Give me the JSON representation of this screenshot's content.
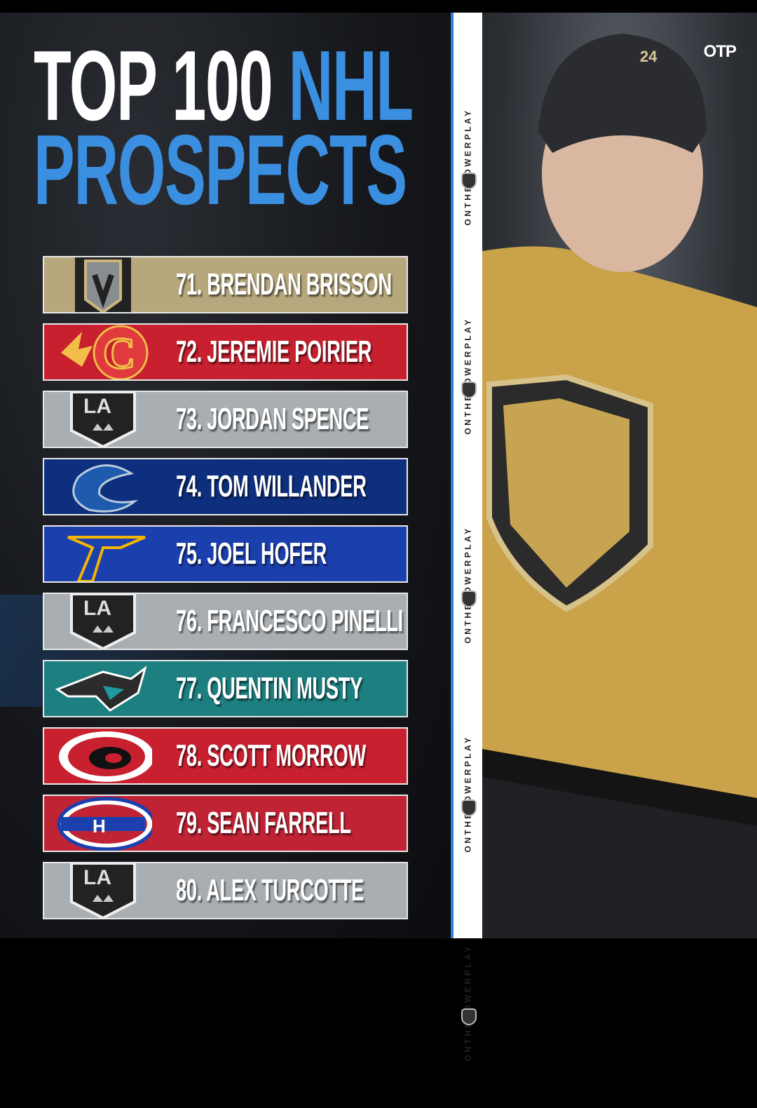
{
  "title": {
    "line1_white": "TOP 100",
    "line1_blue": "NHL",
    "line2": "PROSPECTS"
  },
  "colors": {
    "title_blue": "#3a8fe0",
    "strip_accent": "#2e7fd6"
  },
  "prospects": [
    {
      "label": "71. BRENDAN BRISSON",
      "team_logo": "vegas-golden-knights-icon",
      "color": "#b6a77c"
    },
    {
      "label": "72. JEREMIE POIRIER",
      "team_logo": "calgary-flames-icon",
      "color": "#c8202f"
    },
    {
      "label": "73. JORDAN SPENCE",
      "team_logo": "los-angeles-kings-icon",
      "color": "#a9aeb2"
    },
    {
      "label": "74. TOM WILLANDER",
      "team_logo": "vancouver-canucks-icon",
      "color": "#0d2f7e"
    },
    {
      "label": "75. JOEL HOFER",
      "team_logo": "st-louis-blues-icon",
      "color": "#1c3fae"
    },
    {
      "label": "76. FRANCESCO PINELLI",
      "team_logo": "los-angeles-kings-icon",
      "color": "#a9aeb2"
    },
    {
      "label": "77. QUENTIN MUSTY",
      "team_logo": "san-jose-sharks-icon",
      "color": "#1d7f80"
    },
    {
      "label": "78. SCOTT MORROW",
      "team_logo": "carolina-hurricanes-icon",
      "color": "#c8202f"
    },
    {
      "label": "79. SEAN FARRELL",
      "team_logo": "montreal-canadiens-icon",
      "color": "#c02434"
    },
    {
      "label": "80. ALEX TURCOTTE",
      "team_logo": "los-angeles-kings-icon",
      "color": "#a9aeb2"
    }
  ],
  "strip": {
    "text": "ONTHEPOWERPLAY"
  },
  "brand": {
    "logo": "OTP"
  }
}
